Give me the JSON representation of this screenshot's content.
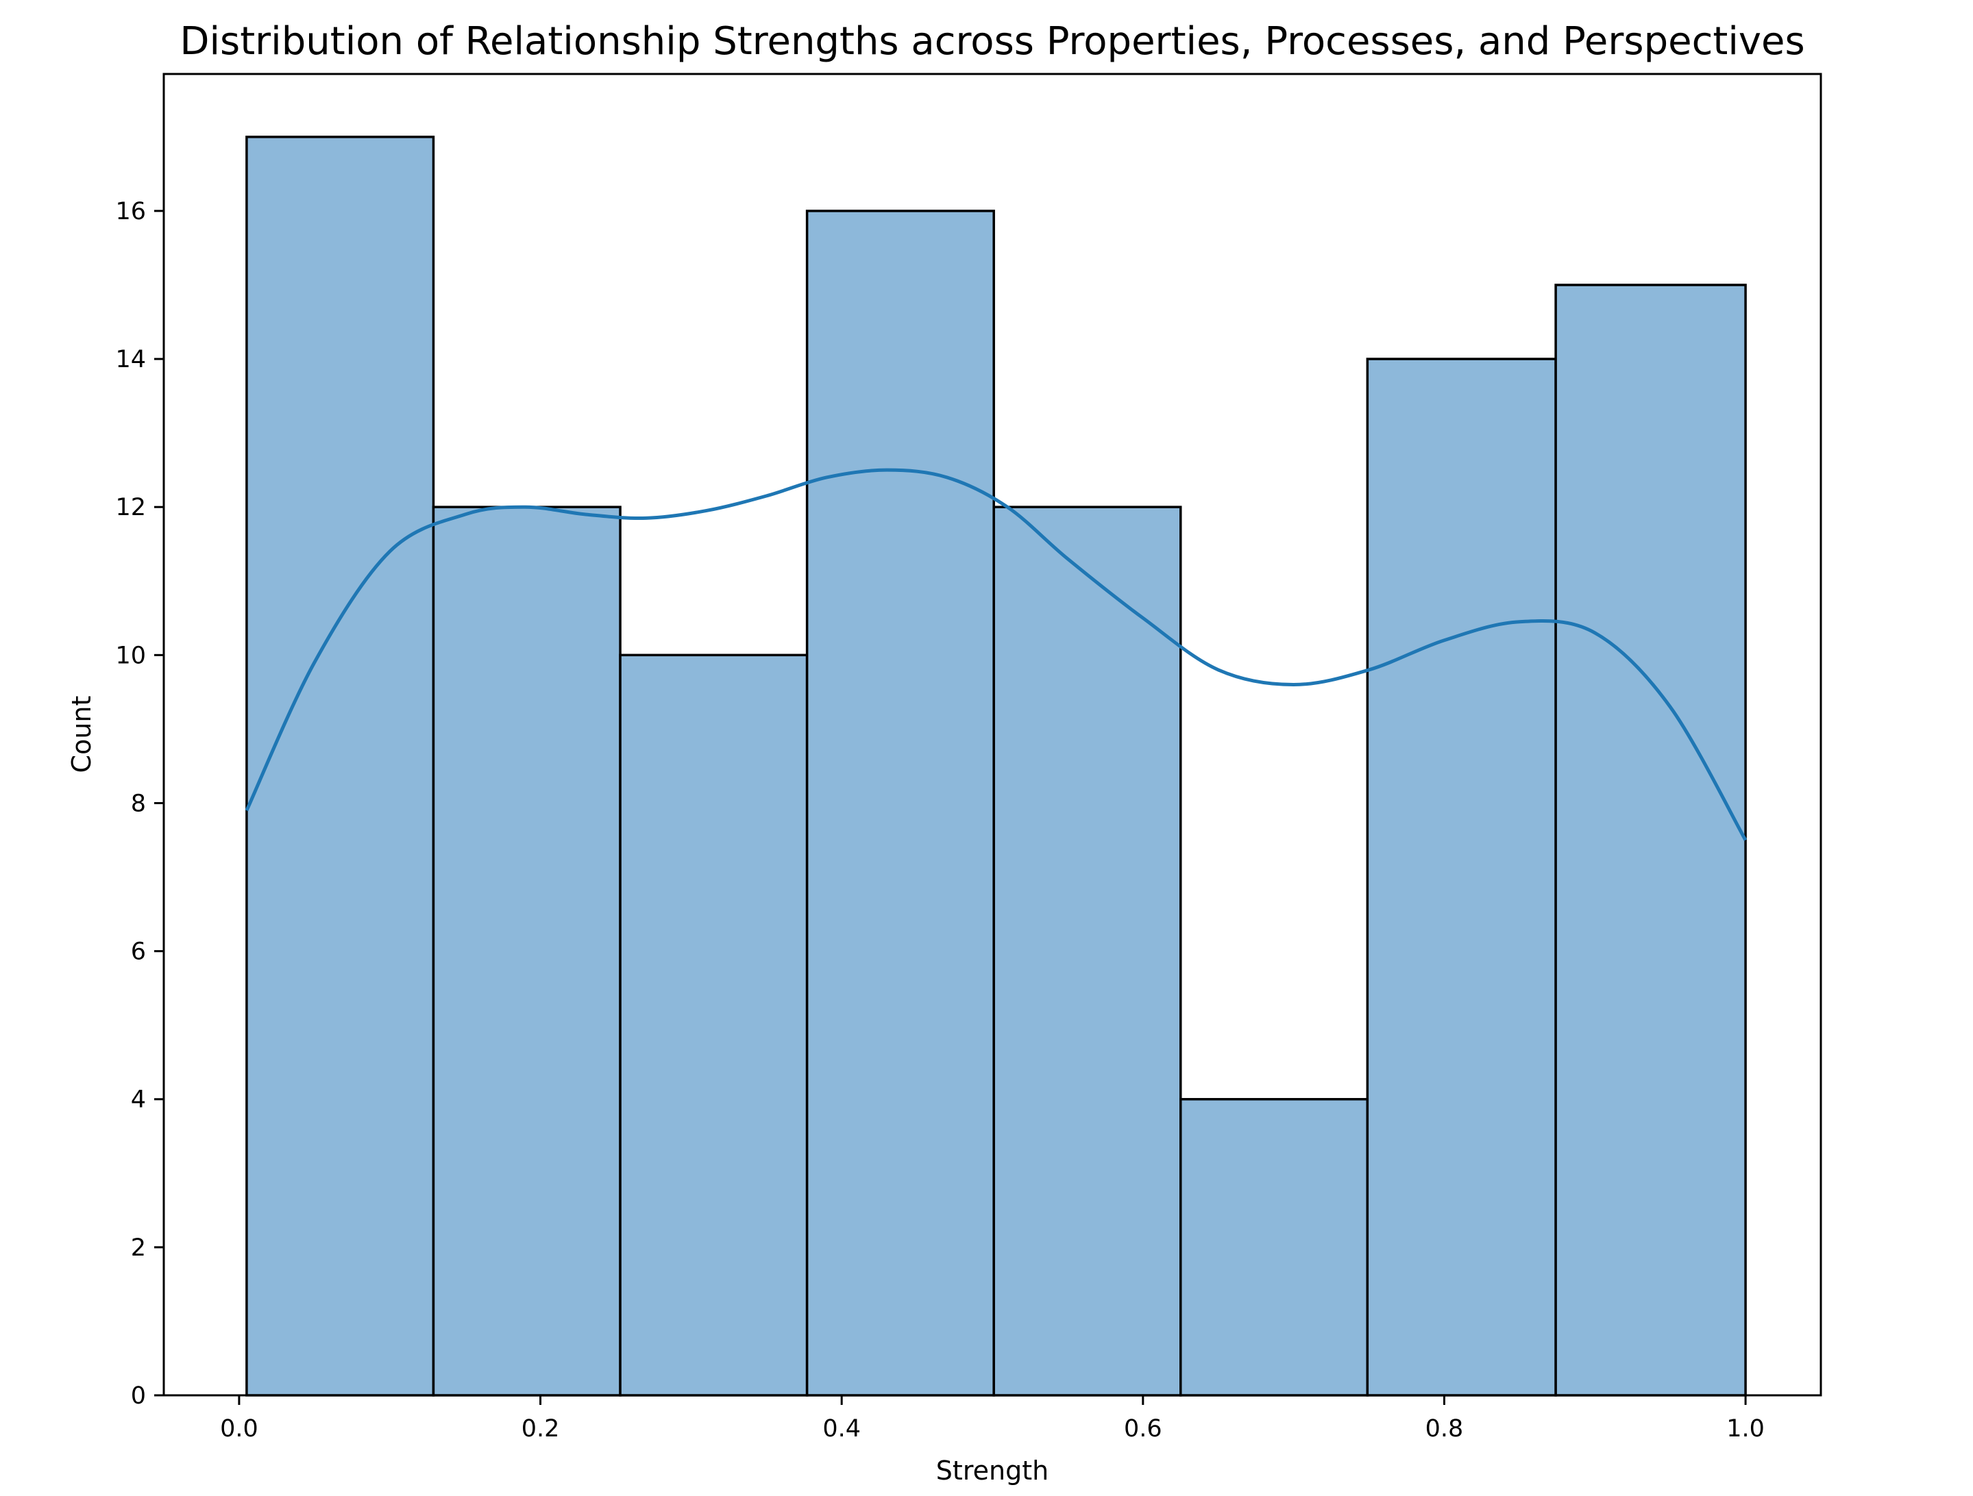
{
  "chart_data": {
    "type": "bar",
    "title": "Distribution of Relationship Strengths across Properties, Processes, and Perspectives",
    "xlabel": "Strength",
    "ylabel": "Count",
    "bins": [
      {
        "start": 0.005,
        "end": 0.129,
        "count": 17
      },
      {
        "start": 0.129,
        "end": 0.253,
        "count": 12
      },
      {
        "start": 0.253,
        "end": 0.377,
        "count": 10
      },
      {
        "start": 0.377,
        "end": 0.501,
        "count": 16
      },
      {
        "start": 0.501,
        "end": 0.625,
        "count": 12
      },
      {
        "start": 0.625,
        "end": 0.749,
        "count": 4
      },
      {
        "start": 0.749,
        "end": 0.874,
        "count": 14
      },
      {
        "start": 0.874,
        "end": 1.0,
        "count": 15
      }
    ],
    "kde": {
      "x": [
        0.005,
        0.05,
        0.1,
        0.15,
        0.19,
        0.23,
        0.27,
        0.31,
        0.35,
        0.39,
        0.43,
        0.47,
        0.51,
        0.55,
        0.6,
        0.65,
        0.7,
        0.75,
        0.8,
        0.85,
        0.9,
        0.95,
        1.0
      ],
      "y": [
        7.9,
        9.9,
        11.4,
        11.9,
        12.0,
        11.9,
        11.85,
        11.95,
        12.15,
        12.4,
        12.5,
        12.4,
        12.0,
        11.3,
        10.5,
        9.8,
        9.6,
        9.8,
        10.2,
        10.45,
        10.3,
        9.3,
        7.5
      ]
    },
    "xlim": [
      -0.05,
      1.05
    ],
    "ylim": [
      0,
      17.85
    ],
    "xticks": [
      0.0,
      0.2,
      0.4,
      0.6,
      0.8,
      1.0
    ],
    "xtick_labels": [
      "0.0",
      "0.2",
      "0.4",
      "0.6",
      "0.8",
      "1.0"
    ],
    "yticks": [
      0,
      2,
      4,
      6,
      8,
      10,
      12,
      14,
      16
    ],
    "ytick_labels": [
      "0",
      "2",
      "4",
      "6",
      "8",
      "10",
      "12",
      "14",
      "16"
    ],
    "grid": false,
    "colors": {
      "bar_fill": "#8db8da",
      "bar_edge": "#000000",
      "kde_line": "#1f77b4"
    }
  }
}
